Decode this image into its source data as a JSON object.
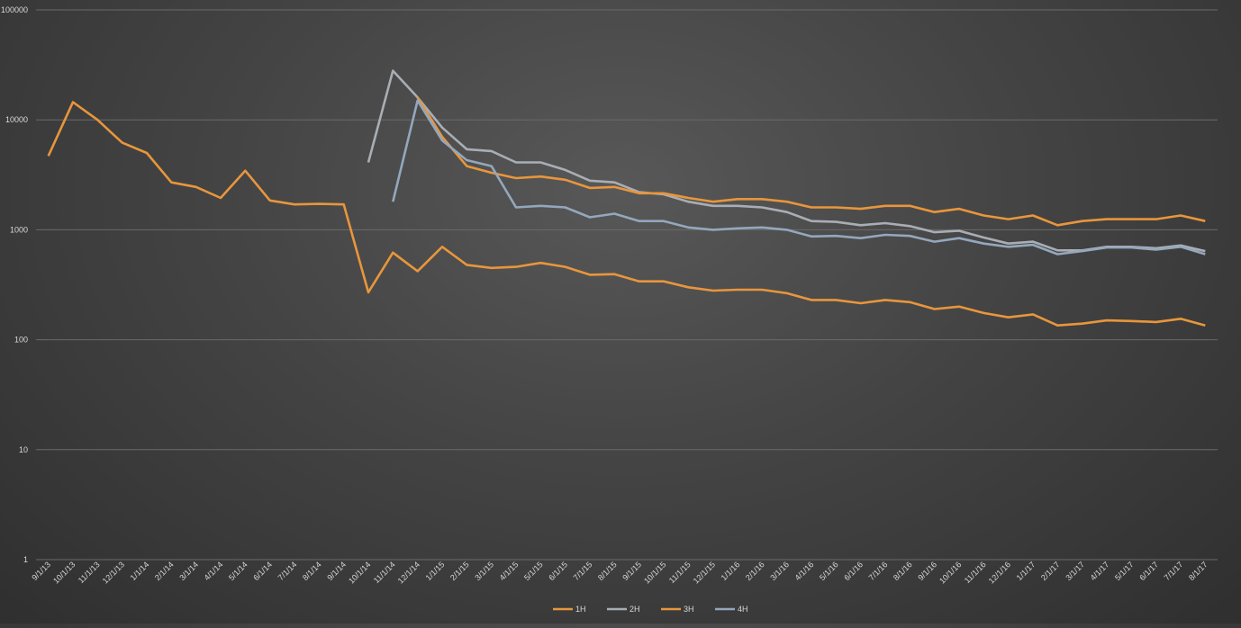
{
  "chart_data": {
    "type": "line",
    "yscale": "log",
    "ylim": [
      1,
      100000
    ],
    "yticks": [
      "1",
      "10",
      "100",
      "1000",
      "10000",
      "100000"
    ],
    "grid": true,
    "legend_position": "bottom",
    "categories": [
      "9/1/13",
      "10/1/13",
      "11/1/13",
      "12/1/13",
      "1/1/14",
      "2/1/14",
      "3/1/14",
      "4/1/14",
      "5/1/14",
      "6/1/14",
      "7/1/14",
      "8/1/14",
      "9/1/14",
      "10/1/14",
      "11/1/14",
      "12/1/14",
      "1/1/15",
      "2/1/15",
      "3/1/15",
      "4/1/15",
      "5/1/15",
      "6/1/15",
      "7/1/15",
      "8/1/15",
      "9/1/15",
      "10/1/15",
      "11/1/15",
      "12/1/15",
      "1/1/16",
      "2/1/16",
      "3/1/16",
      "4/1/16",
      "5/1/16",
      "6/1/16",
      "7/1/16",
      "8/1/16",
      "9/1/16",
      "10/1/16",
      "11/1/16",
      "12/1/16",
      "1/1/17",
      "2/1/17",
      "3/1/17",
      "4/1/17",
      "5/1/17",
      "6/1/17",
      "7/1/17",
      "8/1/17"
    ],
    "series": [
      {
        "name": "1H",
        "color": "#e8963c",
        "values": [
          4700,
          14500,
          10000,
          6200,
          5000,
          2700,
          2450,
          1950,
          3450,
          1850,
          1700,
          1720,
          1700,
          270,
          620,
          420,
          700,
          480,
          450,
          460,
          500,
          460,
          390,
          395,
          340,
          340,
          300,
          280,
          285,
          285,
          265,
          230,
          230,
          215,
          230,
          220,
          190,
          200,
          175,
          160,
          170,
          135,
          140,
          150,
          148,
          145,
          155,
          135
        ]
      },
      {
        "name": "2H",
        "color": "#a9aeb4",
        "values": [
          null,
          null,
          null,
          null,
          null,
          null,
          null,
          null,
          null,
          null,
          null,
          null,
          null,
          4100,
          28000,
          16000,
          8500,
          5400,
          5200,
          4100,
          4100,
          3500,
          2800,
          2700,
          2200,
          2100,
          1800,
          1650,
          1650,
          1600,
          1450,
          1200,
          1180,
          1100,
          1150,
          1080,
          950,
          980,
          850,
          750,
          780,
          650,
          650,
          700,
          700,
          680,
          720,
          640
        ]
      },
      {
        "name": "3H",
        "color": "#e8963c",
        "values": [
          null,
          null,
          null,
          null,
          null,
          null,
          null,
          null,
          null,
          null,
          null,
          null,
          null,
          null,
          null,
          16000,
          7000,
          3800,
          3300,
          2950,
          3050,
          2850,
          2400,
          2450,
          2150,
          2150,
          1950,
          1800,
          1900,
          1900,
          1800,
          1600,
          1600,
          1550,
          1650,
          1650,
          1450,
          1550,
          1350,
          1250,
          1350,
          1100,
          1200,
          1250,
          1250,
          1250,
          1350,
          1200
        ]
      },
      {
        "name": "4H",
        "color": "#94a7bd",
        "values": [
          null,
          null,
          null,
          null,
          null,
          null,
          null,
          null,
          null,
          null,
          null,
          null,
          null,
          null,
          1800,
          15000,
          6500,
          4300,
          3800,
          1600,
          1650,
          1600,
          1300,
          1400,
          1200,
          1200,
          1050,
          1000,
          1030,
          1050,
          1000,
          870,
          880,
          840,
          900,
          880,
          780,
          840,
          750,
          700,
          730,
          600,
          640,
          690,
          690,
          660,
          700,
          600
        ]
      }
    ]
  }
}
